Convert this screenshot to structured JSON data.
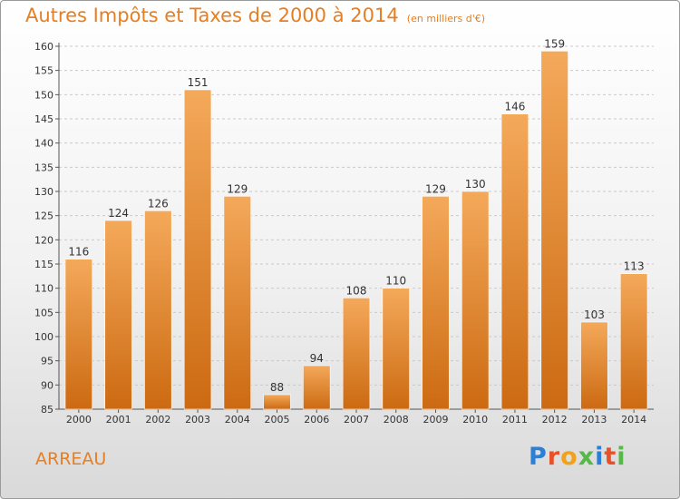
{
  "title": "Autres Impôts et Taxes de 2000 à 2014",
  "subtitle": "(en milliers d'€)",
  "place": "ARREAU",
  "logo": {
    "text": "Proxiti",
    "colors": [
      "#2b7fd4",
      "#e8502a",
      "#f2a21a",
      "#54b947",
      "#2b7fd4",
      "#e8502a",
      "#54b947"
    ]
  },
  "colors": {
    "accent": "#e67e22",
    "bar_top": "#f4a95a",
    "bar_bottom": "#cc6a12",
    "grid": "#c9c9c9"
  },
  "chart_data": {
    "type": "bar",
    "title": "Autres Impôts et Taxes de 2000 à 2014",
    "subtitle": "(en milliers d'€)",
    "categories": [
      "2000",
      "2001",
      "2002",
      "2003",
      "2004",
      "2005",
      "2006",
      "2007",
      "2008",
      "2009",
      "2010",
      "2011",
      "2012",
      "2013",
      "2014"
    ],
    "values": [
      116,
      124,
      126,
      151,
      129,
      88,
      94,
      108,
      110,
      129,
      130,
      146,
      159,
      103,
      113
    ],
    "ylim": [
      85,
      160
    ],
    "yticks": [
      85,
      90,
      95,
      100,
      105,
      110,
      115,
      120,
      125,
      130,
      135,
      140,
      145,
      150,
      155,
      160
    ],
    "grid": true,
    "data_labels": true
  }
}
